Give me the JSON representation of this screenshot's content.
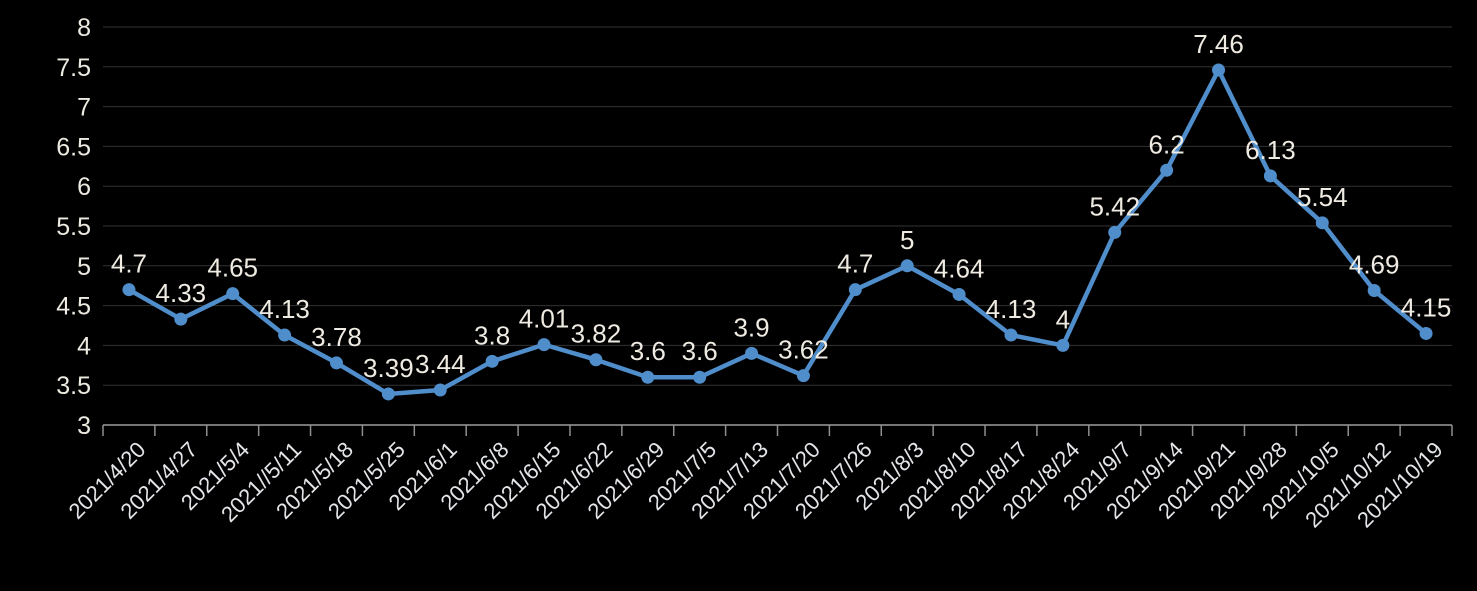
{
  "chart_data": {
    "type": "line",
    "title": "",
    "categories": [
      "2021/4/20",
      "2021/4/27",
      "2021/5/4",
      "2021//5/11",
      "2021/5/18",
      "2021/5/25",
      "2021/6/1",
      "2021/6/8",
      "2021/6/15",
      "2021/6/22",
      "2021/6/29",
      "2021/7/5",
      "2021/7/13",
      "2021/7/20",
      "2021/7/26",
      "2021/8/3",
      "2021/8/10",
      "2021/8/17",
      "2021/8/24",
      "2021/9/7",
      "2021/9/14",
      "2021/9/21",
      "2021/9/28",
      "2021/10/5",
      "2021/10/12",
      "2021/10/19"
    ],
    "values": [
      4.7,
      4.33,
      4.65,
      4.13,
      3.78,
      3.39,
      3.44,
      3.8,
      4.01,
      3.82,
      3.6,
      3.6,
      3.9,
      3.62,
      4.7,
      5,
      4.64,
      4.13,
      4,
      5.42,
      6.2,
      7.46,
      6.13,
      5.54,
      4.69,
      4.15
    ],
    "data_labels": [
      "4.7",
      "4.33",
      "4.65",
      "4.13",
      "3.78",
      "3.39",
      "3.44",
      "3.8",
      "4.01",
      "3.82",
      "3.6",
      "3.6",
      "3.9",
      "3.62",
      "4.7",
      "5",
      "4.64",
      "4.13",
      "4",
      "5.42",
      "6.2",
      "7.46",
      "6.13",
      "5.54",
      "4.69",
      "4.15"
    ],
    "ylim": [
      3,
      8
    ],
    "ytick_step": 0.5,
    "ytick_labels": [
      "3",
      "3.5",
      "4",
      "4.5",
      "5",
      "5.5",
      "6",
      "6.5",
      "7",
      "7.5",
      "8"
    ],
    "grid": true,
    "legend": "none",
    "x_label_rotation_deg": 45,
    "colors": {
      "background": "#000000",
      "series_line": "#4F8DCB",
      "marker": "#4F8DCB",
      "data_label": "#EFEBE2",
      "y_axis_label": "#EDEAE1",
      "x_axis_label": "#E3E5E9",
      "gridline": "#333333",
      "axis_line": "#9E9E9E",
      "tick": "#8F8F8F"
    }
  }
}
